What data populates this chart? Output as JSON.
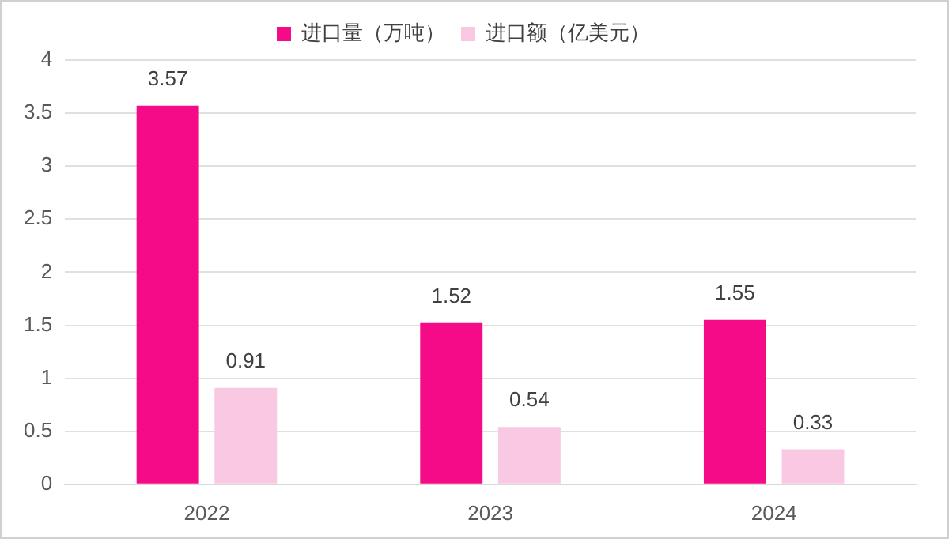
{
  "chart_data": {
    "type": "bar",
    "categories": [
      "2022",
      "2023",
      "2024"
    ],
    "series": [
      {
        "name": "进口量（万吨）",
        "color": "#f50a87",
        "values": [
          3.57,
          1.52,
          1.55
        ]
      },
      {
        "name": "进口额（亿美元）",
        "color": "#f9c8e3",
        "values": [
          0.91,
          0.54,
          0.33
        ]
      }
    ],
    "ylim": [
      0,
      4
    ],
    "yticks": [
      0,
      0.5,
      1,
      1.5,
      2,
      2.5,
      3,
      3.5,
      4
    ],
    "grid": "y",
    "legend": "top",
    "data_labels": true
  }
}
